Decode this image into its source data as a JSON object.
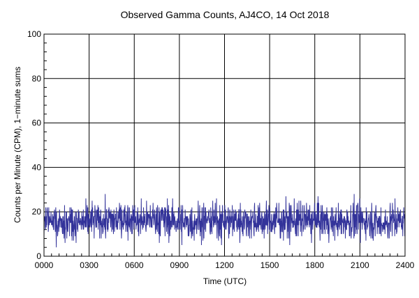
{
  "chart_data": {
    "type": "line",
    "title": "Observed Gamma Counts, AJ4CO, 14 Oct 2018",
    "xlabel": "Time (UTC)",
    "ylabel": "Counts per Minute (CPM), 1−minute sums",
    "x_ticks": [
      "0000",
      "0300",
      "0600",
      "0900",
      "1200",
      "1500",
      "1800",
      "2100",
      "2400"
    ],
    "y_ticks": [
      "0",
      "20",
      "40",
      "60",
      "80",
      "100"
    ],
    "xlim": [
      0,
      1440
    ],
    "ylim": [
      0,
      100
    ],
    "x_unit": "minutes since 0000 UTC",
    "grid": true,
    "line_color": "#33339a",
    "series": [
      {
        "name": "",
        "sampling_minutes": 1,
        "approx_mean_cpm": 16,
        "approx_range_cpm": [
          4,
          31
        ],
        "hourly_means": [
          16,
          16,
          15,
          16,
          16,
          17,
          16,
          17,
          16,
          15,
          16,
          16,
          16,
          16,
          16,
          16,
          16,
          16,
          16,
          15,
          16,
          16,
          15,
          16
        ]
      }
    ]
  }
}
